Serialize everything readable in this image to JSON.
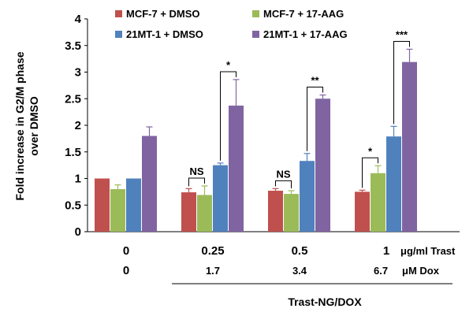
{
  "chart_data": {
    "type": "bar",
    "ylabel_lines": [
      "Fold increase in G2/M phase",
      "over DMSO"
    ],
    "ylim": [
      0,
      4
    ],
    "yticks": [
      "0",
      "0.5",
      "1",
      "1.5",
      "2",
      "2.5",
      "3",
      "3.5",
      "4"
    ],
    "series": [
      {
        "name": "MCF-7 + DMSO",
        "color": "#c0504d",
        "values": [
          1.0,
          0.74,
          0.77,
          0.75
        ],
        "errors": [
          0.0,
          0.07,
          0.04,
          0.03
        ]
      },
      {
        "name": "MCF-7 + 17-AAG",
        "color": "#9bbb59",
        "values": [
          0.8,
          0.69,
          0.71,
          1.1
        ],
        "errors": [
          0.08,
          0.17,
          0.06,
          0.14
        ]
      },
      {
        "name": "21MT-1 + DMSO",
        "color": "#4f81bd",
        "values": [
          1.0,
          1.25,
          1.33,
          1.79
        ],
        "errors": [
          0.0,
          0.04,
          0.14,
          0.19
        ]
      },
      {
        "name": "21MT-1 + 17-AAG",
        "color": "#8064a2",
        "values": [
          1.8,
          2.37,
          2.5,
          3.19
        ],
        "errors": [
          0.17,
          0.49,
          0.07,
          0.24
        ]
      }
    ],
    "trast_labels": [
      "0",
      "0.25",
      "0.5",
      "1"
    ],
    "trast_unit": "μg/ml Trast",
    "dox_labels": [
      "0",
      "1.7",
      "3.4",
      "6.7"
    ],
    "dox_unit": "μM Dox",
    "group_label": "Trast-NG/DOX",
    "significance": [
      {
        "group": 1,
        "from_series": 0,
        "to_series": 1,
        "label": "NS"
      },
      {
        "group": 1,
        "from_series": 2,
        "to_series": 3,
        "label": "*"
      },
      {
        "group": 2,
        "from_series": 0,
        "to_series": 1,
        "label": "NS"
      },
      {
        "group": 2,
        "from_series": 2,
        "to_series": 3,
        "label": "**"
      },
      {
        "group": 3,
        "from_series": 0,
        "to_series": 1,
        "label": "*"
      },
      {
        "group": 3,
        "from_series": 2,
        "to_series": 3,
        "label": "***"
      }
    ]
  }
}
